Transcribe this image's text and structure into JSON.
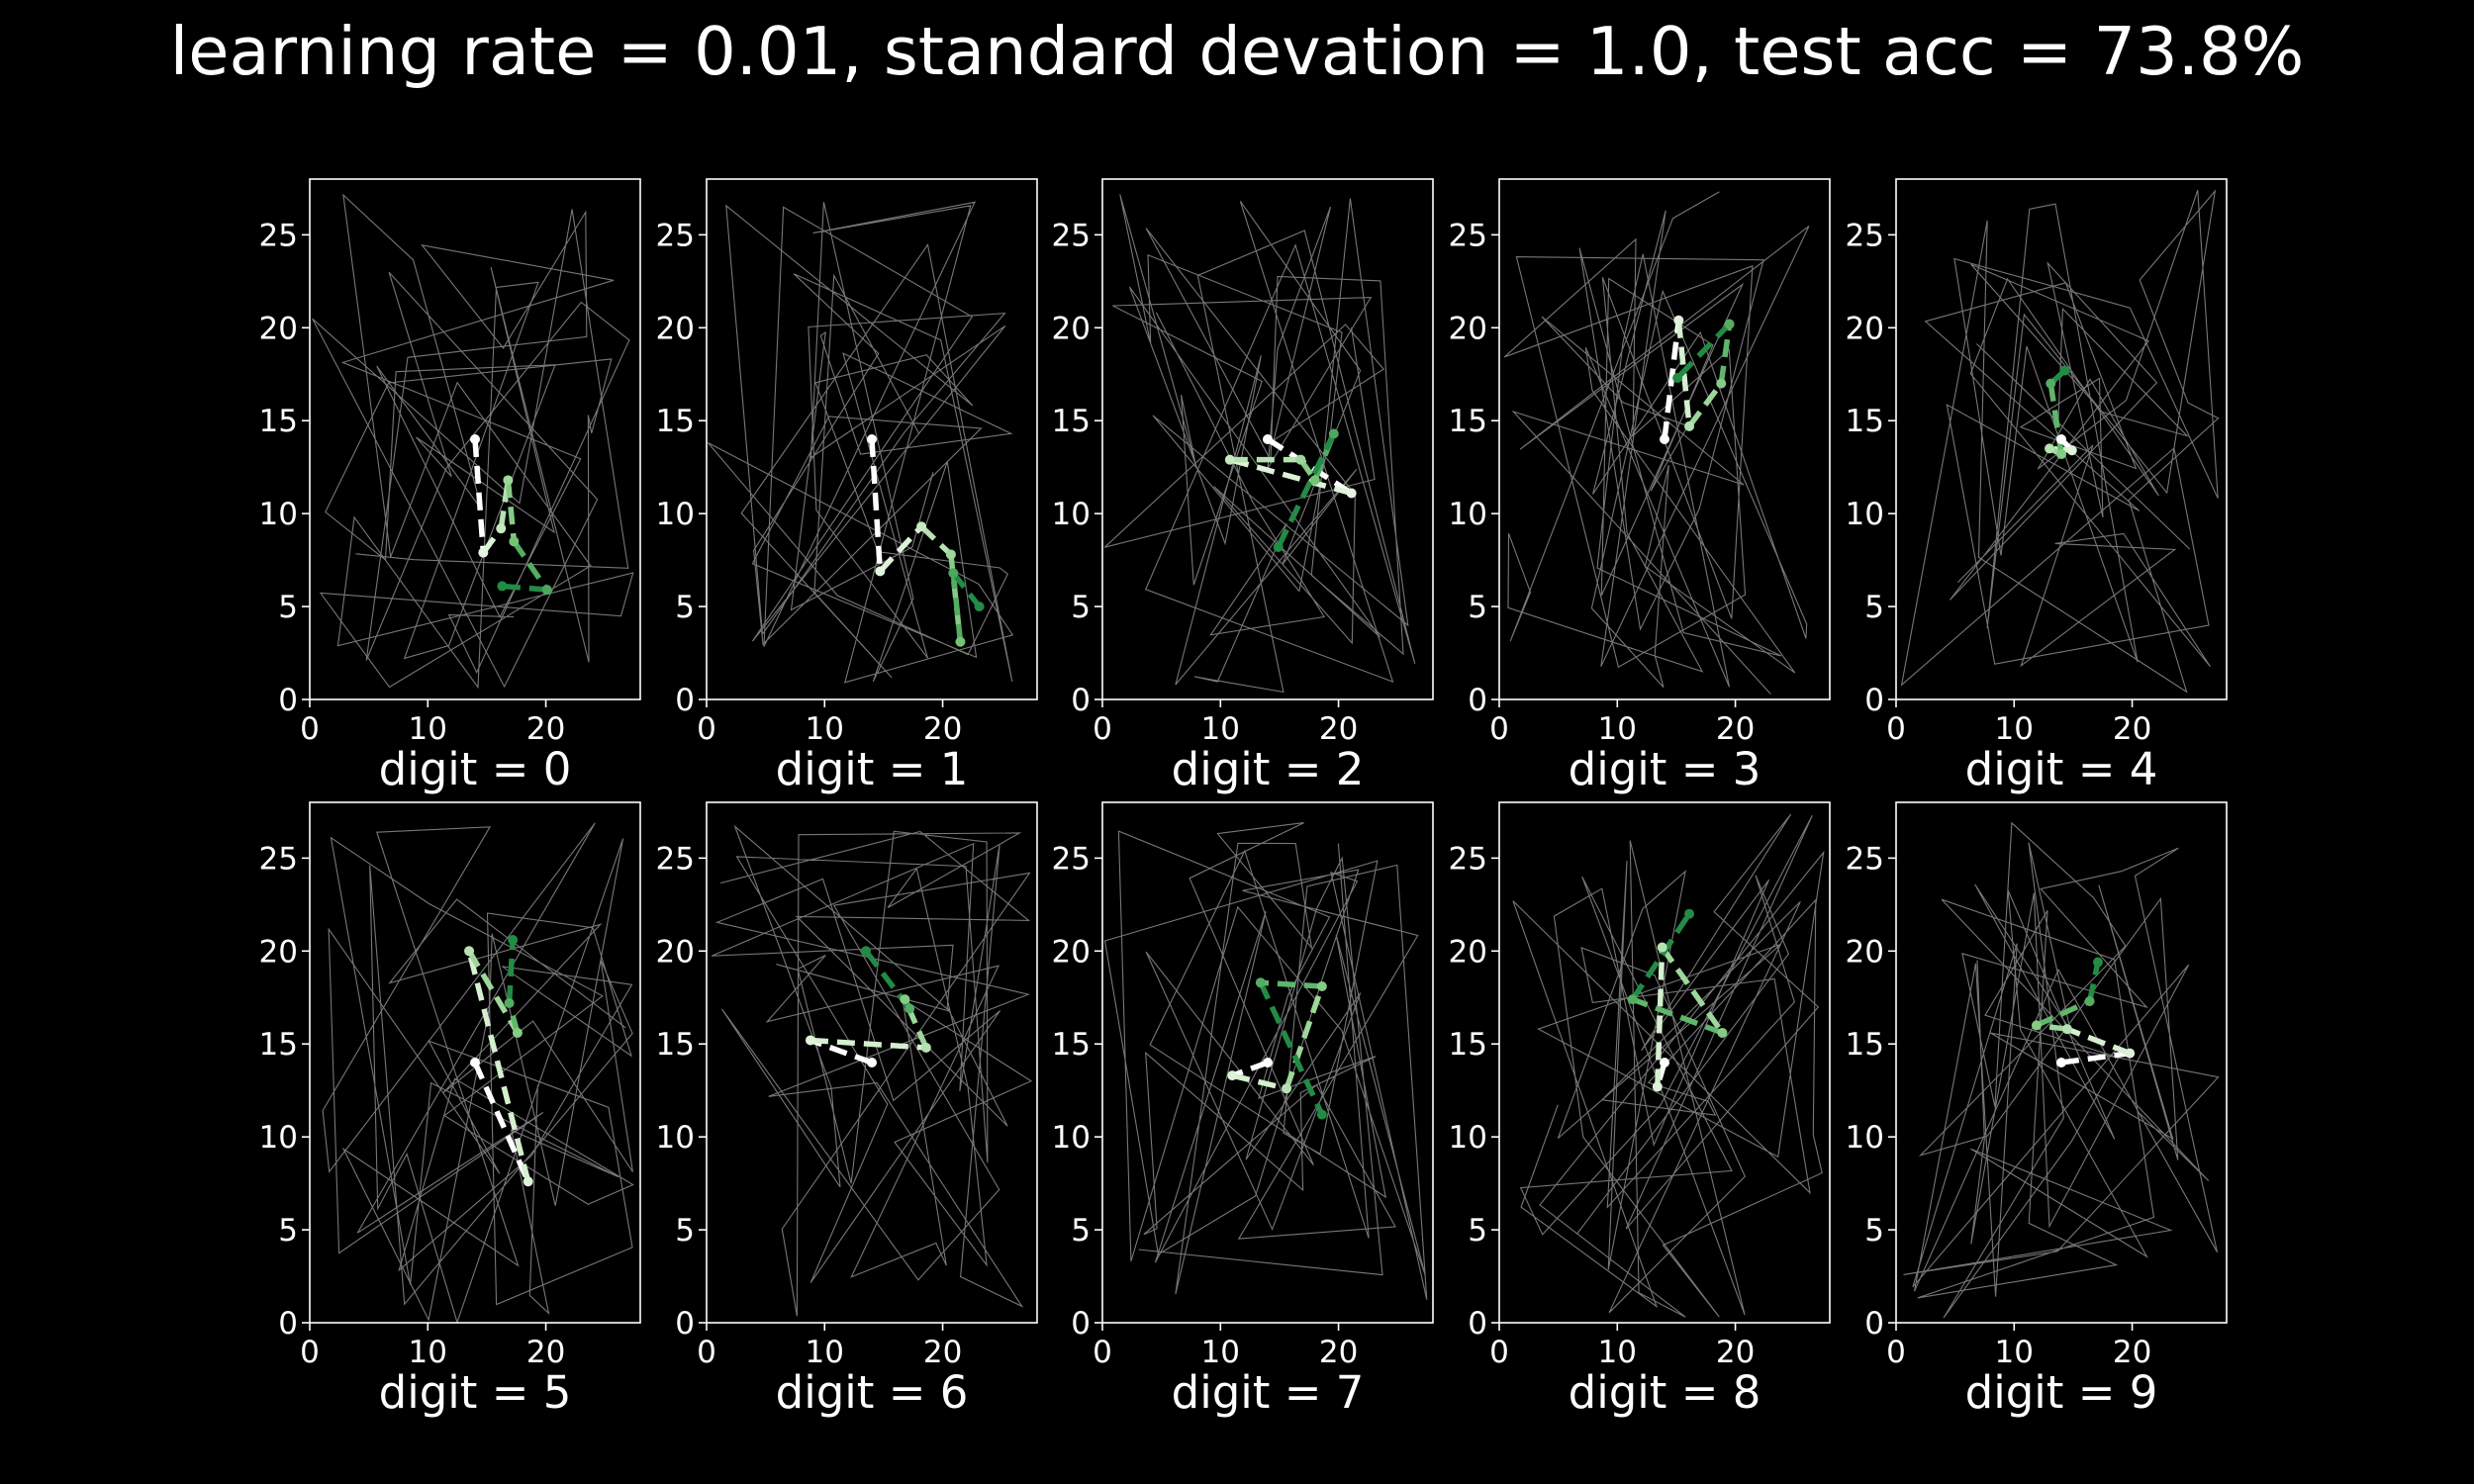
{
  "figure_title": "learning rate = 0.01, standard devation = 1.0, test acc = 73.8%",
  "colors": {
    "background": "#000000",
    "axes": "#ffffff",
    "noise_lines": "#8c8c8c",
    "path_gradient": [
      "#ffffff",
      "#c7e9c0",
      "#74c476",
      "#238b45"
    ]
  },
  "chart_data": {
    "type": "line",
    "grid": false,
    "xlim": [
      0,
      28
    ],
    "ylim": [
      0,
      28
    ],
    "xticks": [
      0,
      10,
      20
    ],
    "yticks": [
      0,
      5,
      10,
      15,
      20,
      25
    ],
    "panels": [
      {
        "label": "digit = 0",
        "path": [
          [
            14,
            14
          ],
          [
            14.7,
            7.9
          ],
          [
            16.2,
            9.2
          ],
          [
            16.8,
            11.8
          ],
          [
            17.3,
            8.5
          ],
          [
            20.1,
            5.9
          ],
          [
            16.3,
            6.1
          ]
        ]
      },
      {
        "label": "digit = 1",
        "path": [
          [
            14,
            14
          ],
          [
            14.7,
            6.9
          ],
          [
            18.2,
            9.3
          ],
          [
            20.7,
            7.8
          ],
          [
            21.5,
            3.1
          ],
          [
            20.9,
            6.8
          ],
          [
            23.1,
            5
          ]
        ]
      },
      {
        "label": "digit = 2",
        "path": [
          [
            14,
            14
          ],
          [
            21.1,
            11.1
          ],
          [
            10.8,
            12.9
          ],
          [
            16.8,
            12.9
          ],
          [
            18,
            11.8
          ],
          [
            19.6,
            14.3
          ],
          [
            14.9,
            8.2
          ]
        ]
      },
      {
        "label": "digit = 3",
        "path": [
          [
            14,
            14
          ],
          [
            15.2,
            20.4
          ],
          [
            16.1,
            14.7
          ],
          [
            18.8,
            17
          ],
          [
            19.5,
            20.2
          ],
          [
            15.1,
            17.3
          ]
        ]
      },
      {
        "label": "digit = 4",
        "path": [
          [
            14,
            14
          ],
          [
            14.9,
            13.4
          ],
          [
            13,
            13.5
          ],
          [
            14,
            13.2
          ],
          [
            13.1,
            17
          ],
          [
            14.3,
            17.7
          ]
        ]
      },
      {
        "label": "digit = 5",
        "path": [
          [
            14,
            14
          ],
          [
            18.5,
            7.6
          ],
          [
            13.5,
            20
          ],
          [
            17.6,
            15.6
          ],
          [
            16.9,
            17.2
          ],
          [
            17.2,
            20.6
          ]
        ]
      },
      {
        "label": "digit = 6",
        "path": [
          [
            14,
            14
          ],
          [
            8.8,
            15.2
          ],
          [
            18.6,
            14.8
          ],
          [
            16.8,
            17.4
          ],
          [
            17.2,
            16.9
          ],
          [
            13.5,
            20
          ]
        ]
      },
      {
        "label": "digit = 7",
        "path": [
          [
            14,
            14
          ],
          [
            11,
            13.3
          ],
          [
            15.6,
            12.6
          ],
          [
            18.6,
            18.1
          ],
          [
            13.4,
            18.3
          ],
          [
            18.6,
            11.2
          ]
        ]
      },
      {
        "label": "digit = 8",
        "path": [
          [
            14,
            14
          ],
          [
            13.4,
            12.7
          ],
          [
            13.8,
            20.2
          ],
          [
            18.9,
            15.6
          ],
          [
            11.3,
            17.4
          ],
          [
            16.1,
            22
          ]
        ]
      },
      {
        "label": "digit = 9",
        "path": [
          [
            14,
            14
          ],
          [
            19.8,
            14.5
          ],
          [
            14.5,
            15.8
          ],
          [
            11.9,
            16
          ],
          [
            16.4,
            17.3
          ],
          [
            17.1,
            19.4
          ]
        ]
      }
    ]
  }
}
